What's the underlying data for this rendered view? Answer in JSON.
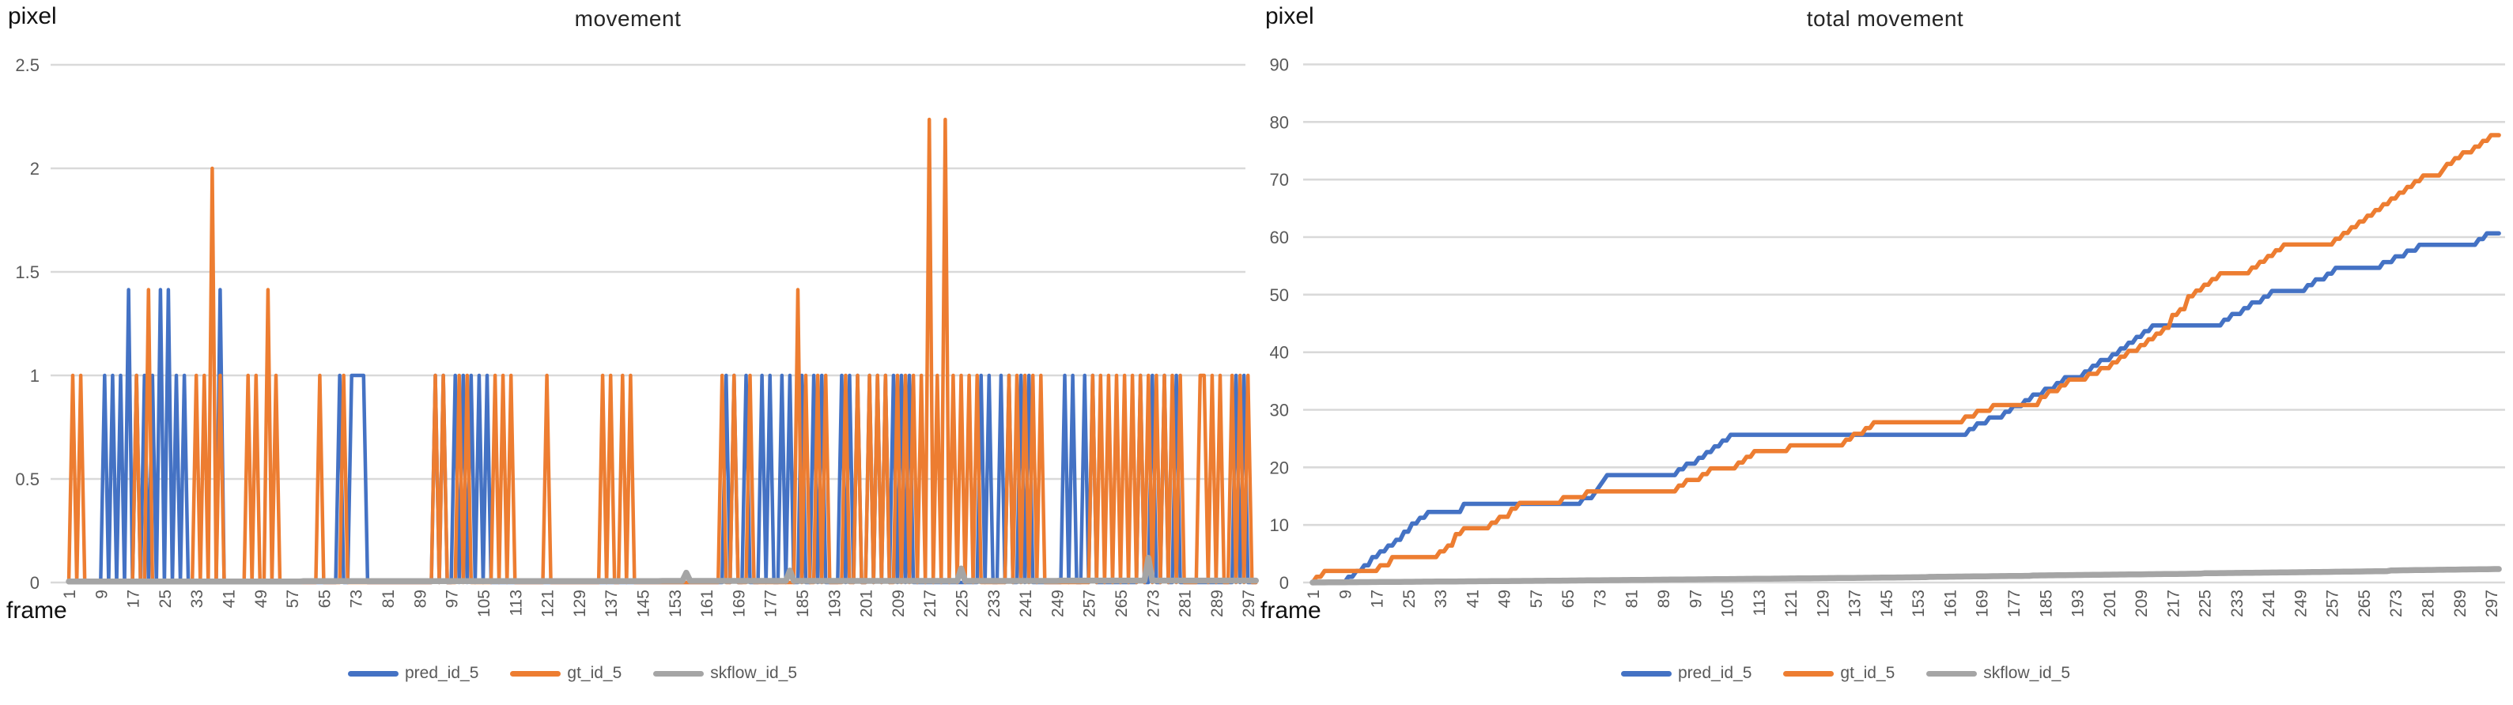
{
  "left_chart": {
    "title": "movement",
    "y_axis_unit": "pixel",
    "x_axis_unit": "frame"
  },
  "right_chart": {
    "title": "total movement",
    "y_axis_unit": "pixel",
    "x_axis_unit": "frame"
  },
  "colors": {
    "pred": "#4472C4",
    "gt": "#ED7D31",
    "skflow": "#A5A5A5",
    "gridline": "#D9D9D9",
    "tick_label": "#595959"
  },
  "chart_data": [
    {
      "type": "line",
      "title": "movement",
      "xlabel": "frame",
      "ylabel": "pixel",
      "ylim": [
        0,
        2.5
      ],
      "y_ticks": [
        0,
        0.5,
        1,
        1.5,
        2,
        2.5
      ],
      "x_ticks": [
        1,
        9,
        17,
        25,
        33,
        41,
        49,
        57,
        65,
        73,
        81,
        89,
        97,
        105,
        113,
        121,
        129,
        137,
        145,
        153,
        161,
        169,
        177,
        185,
        193,
        201,
        209,
        217,
        225,
        233,
        241,
        249,
        257,
        265,
        273,
        281,
        289,
        297
      ],
      "frame_range": [
        1,
        299
      ],
      "grid": true,
      "legend_position": "bottom",
      "spike_values": {
        "ones": 1,
        "sqrt2": 1.4142,
        "twos": 2.0,
        "sqrt5": 2.2361
      },
      "series": [
        {
          "name": "pred_id_5",
          "color": "#4472C4",
          "ones": [
            10,
            12,
            14,
            18,
            20,
            22,
            28,
            30,
            69,
            72,
            73,
            74,
            75,
            93,
            95,
            98,
            100,
            102,
            104,
            106,
            166,
            168,
            171,
            175,
            177,
            180,
            182,
            185,
            188,
            190,
            195,
            197,
            199,
            202,
            204,
            206,
            208,
            210,
            212,
            230,
            232,
            235,
            237,
            240,
            242,
            251,
            253,
            256,
            258,
            270,
            273,
            276,
            279,
            294,
            296
          ],
          "sqrt2": [
            16,
            24,
            26,
            39
          ],
          "twos": [],
          "sqrt5": []
        },
        {
          "name": "gt_id_5",
          "color": "#ED7D31",
          "ones": [
            2,
            4,
            18,
            33,
            35,
            39,
            46,
            48,
            53,
            64,
            70,
            93,
            95,
            99,
            101,
            108,
            110,
            112,
            121,
            135,
            137,
            140,
            142,
            165,
            168,
            172,
            186,
            189,
            191,
            196,
            199,
            202,
            204,
            206,
            209,
            211,
            213,
            215,
            219,
            223,
            225,
            227,
            229,
            237,
            239,
            241,
            243,
            245,
            258,
            260,
            262,
            264,
            266,
            268,
            270,
            272,
            274,
            276,
            278,
            280,
            285,
            286,
            288,
            290,
            293,
            295,
            297
          ],
          "sqrt2": [
            21,
            51,
            184
          ],
          "twos": [
            37
          ],
          "sqrt5": [
            217,
            221
          ]
        },
        {
          "name": "skflow_id_5",
          "color": "#A5A5A5",
          "base_segments": [
            [
              1,
              59,
              0.005
            ],
            [
              60,
              149,
              0.0065
            ],
            [
              150,
              249,
              0.0075
            ],
            [
              250,
              299,
              0.009
            ]
          ],
          "bumps": {
            "156": 0.04,
            "182": 0.05,
            "225": 0.06,
            "272": 0.11
          }
        }
      ]
    },
    {
      "type": "line",
      "title": "total movement",
      "xlabel": "frame",
      "ylabel": "pixel",
      "ylim": [
        0,
        90
      ],
      "y_ticks": [
        0,
        10,
        20,
        30,
        40,
        50,
        60,
        70,
        80,
        90
      ],
      "x_ticks": [
        1,
        9,
        17,
        25,
        33,
        41,
        49,
        57,
        65,
        73,
        81,
        89,
        97,
        105,
        113,
        121,
        129,
        137,
        145,
        153,
        161,
        169,
        177,
        185,
        193,
        201,
        209,
        217,
        225,
        233,
        241,
        249,
        257,
        265,
        273,
        281,
        289,
        297
      ],
      "frame_range": [
        1,
        299
      ],
      "grid": true,
      "legend_position": "bottom",
      "derivation": "cumulative_sum_of_chart_0_series",
      "end_values": {
        "pred_id_5": 60.7,
        "gt_id_5": 77.7,
        "skflow_id_5": 2.3
      }
    }
  ],
  "legend": {
    "items": [
      {
        "label": "pred_id_5",
        "color": "#4472C4"
      },
      {
        "label": "gt_id_5",
        "color": "#ED7D31"
      },
      {
        "label": "skflow_id_5",
        "color": "#A5A5A5"
      }
    ]
  }
}
